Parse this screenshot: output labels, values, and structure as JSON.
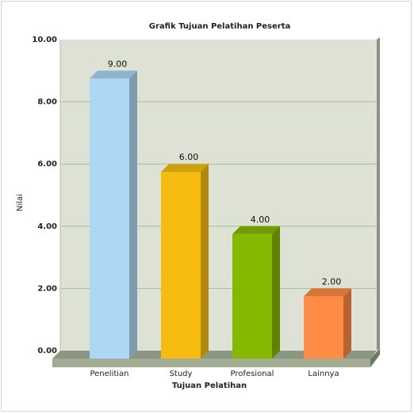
{
  "chart_data": {
    "type": "bar",
    "title": "Grafik Tujuan Pelatihan Peserta",
    "xlabel": "Tujuan Pelatihan",
    "ylabel": "Nilai",
    "categories": [
      "Penelitian",
      "Study",
      "Profesional",
      "Lainnya"
    ],
    "values": [
      9.0,
      6.0,
      4.0,
      2.0
    ],
    "value_labels": [
      "9.00",
      "6.00",
      "4.00",
      "2.00"
    ],
    "y_ticks": [
      0,
      2,
      4,
      6,
      8,
      10
    ],
    "y_tick_labels": [
      "0.00",
      "2.00",
      "4.00",
      "6.00",
      "8.00",
      "10.00"
    ],
    "ylim": [
      0,
      10
    ],
    "grid": true,
    "three_d": true,
    "bar_colors": [
      "#acd8f6",
      "#f5bb0f",
      "#87b800",
      "#ff8c45"
    ],
    "bar_side_colors": [
      "#7e9bb0",
      "#b1880b",
      "#5f8200",
      "#b8622f"
    ],
    "bar_top_colors": [
      "#8fb4cc",
      "#d09f0c",
      "#729c00",
      "#d9743a"
    ],
    "plot_background": "#dde2d5",
    "grid_color": "#a8c08a",
    "floor_color": "#a2ac93"
  }
}
